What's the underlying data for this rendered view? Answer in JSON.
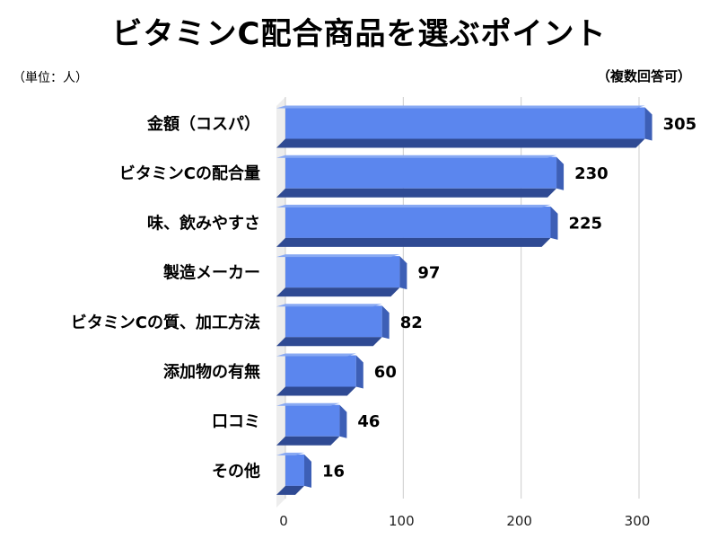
{
  "title": "ビタミンC配合商品を選ぶポイント",
  "unit_label": "（単位：人）",
  "note": "（複数回答可）",
  "colors": {
    "bar_front": "#5b86ee",
    "bar_top": "#88a9f3",
    "bar_side": "#3d5fb6",
    "bar_bottom": "#2f4a93",
    "wall": "#ededed",
    "grid": "#cccccc"
  },
  "chart_data": {
    "type": "bar",
    "orientation": "horizontal",
    "style": "3d",
    "categories": [
      "金額（コスパ）",
      "ビタミンCの配合量",
      "味、飲みやすさ",
      "製造メーカー",
      "ビタミンCの質、加工方法",
      "添加物の有無",
      "口コミ",
      "その他"
    ],
    "values": [
      305,
      230,
      225,
      97,
      82,
      60,
      46,
      16
    ],
    "x_ticks": [
      0,
      100,
      200,
      300
    ],
    "xlim": [
      0,
      300
    ],
    "grid": true,
    "data_labels": true
  }
}
